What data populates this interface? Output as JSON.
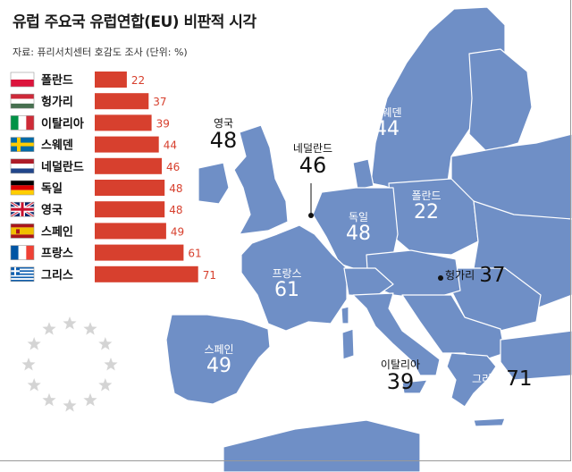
{
  "header": {
    "title": "유럽 주요국 유럽연합(EU) 비판적 시각",
    "source": "자료: 퓨리서치센터 호감도 조사 (단위: %)"
  },
  "colors": {
    "bar": "#d7402e",
    "value_text": "#d7402e",
    "map_land": "#6f8fc6",
    "map_border": "#ffffff",
    "sea": "#ffffff",
    "eu_star": "#d4d4d4"
  },
  "chart_data": {
    "type": "bar",
    "orientation": "horizontal",
    "title": "유럽 주요국 유럽연합(EU) 비판적 시각",
    "categories": [
      "폴란드",
      "헝가리",
      "이탈리아",
      "스웨덴",
      "네덜란드",
      "독일",
      "영국",
      "스페인",
      "프랑스",
      "그리스"
    ],
    "values": [
      22,
      37,
      39,
      44,
      46,
      48,
      48,
      49,
      61,
      71
    ],
    "flag_icons": [
      "poland-flag-icon",
      "hungary-flag-icon",
      "italy-flag-icon",
      "sweden-flag-icon",
      "netherlands-flag-icon",
      "germany-flag-icon",
      "uk-flag-icon",
      "spain-flag-icon",
      "france-flag-icon",
      "greece-flag-icon"
    ],
    "unit": "%",
    "xlim": [
      0,
      80
    ]
  },
  "map": {
    "labels": [
      {
        "name": "스웨덴",
        "value": "44"
      },
      {
        "name": "폴란드",
        "value": "22"
      },
      {
        "name": "독일",
        "value": "48"
      },
      {
        "name": "프랑스",
        "value": "61"
      },
      {
        "name": "스페인",
        "value": "49"
      },
      {
        "name": "헝가리",
        "value": "37"
      },
      {
        "name": "이탈리아",
        "value": "39"
      },
      {
        "name": "그리스",
        "value": "71"
      },
      {
        "name": "영국",
        "value": "48"
      },
      {
        "name": "네덜란드",
        "value": "46"
      }
    ]
  },
  "emblem": {
    "icon": "eu-stars-icon",
    "star_count": 12
  }
}
